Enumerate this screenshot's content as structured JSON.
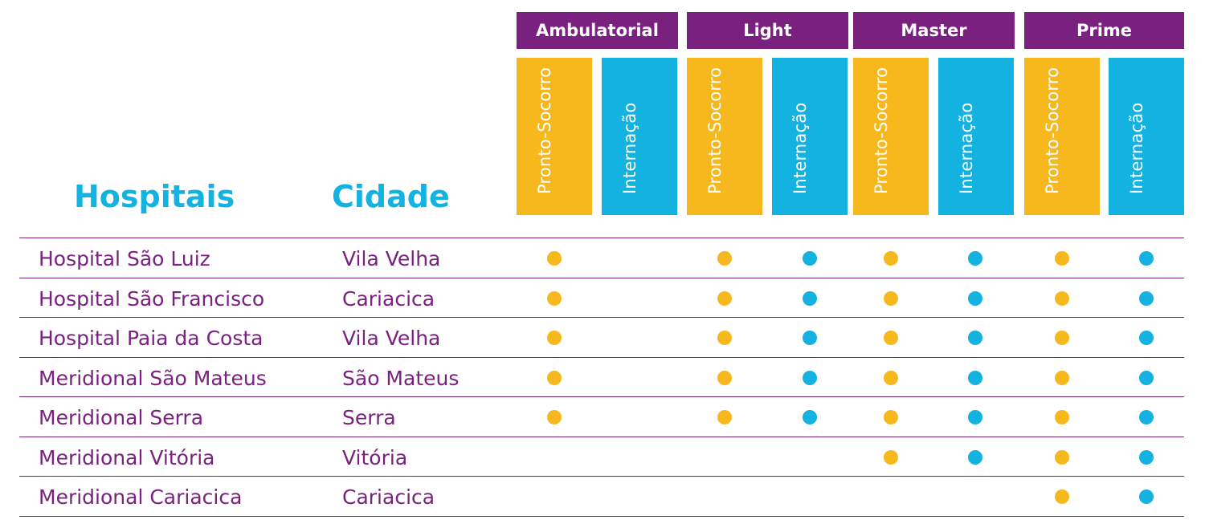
{
  "colors": {
    "purple": "#7a2180",
    "yellow": "#f7b81d",
    "blue": "#13b2e0"
  },
  "headers": {
    "hospitais": "Hospitais",
    "cidade": "Cidade"
  },
  "plans": [
    {
      "name": "Ambulatorial",
      "sub": [
        "Pronto-Socorro",
        "Internação"
      ]
    },
    {
      "name": "Light",
      "sub": [
        "Pronto-Socorro",
        "Internação"
      ]
    },
    {
      "name": "Master",
      "sub": [
        "Pronto-Socorro",
        "Internação"
      ]
    },
    {
      "name": "Prime",
      "sub": [
        "Pronto-Socorro",
        "Internação"
      ]
    }
  ],
  "rows": [
    {
      "hospital": "Hospital São Luiz",
      "cidade": "Vila Velha",
      "coverage": [
        true,
        false,
        true,
        true,
        true,
        true,
        true,
        true
      ]
    },
    {
      "hospital": "Hospital São Francisco",
      "cidade": "Cariacica",
      "coverage": [
        true,
        false,
        true,
        true,
        true,
        true,
        true,
        true
      ]
    },
    {
      "hospital": "Hospital Paia da Costa",
      "cidade": "Vila Velha",
      "coverage": [
        true,
        false,
        true,
        true,
        true,
        true,
        true,
        true
      ]
    },
    {
      "hospital": "Meridional São Mateus",
      "cidade": "São Mateus",
      "coverage": [
        true,
        false,
        true,
        true,
        true,
        true,
        true,
        true
      ]
    },
    {
      "hospital": "Meridional Serra",
      "cidade": "Serra",
      "coverage": [
        true,
        false,
        true,
        true,
        true,
        true,
        true,
        true
      ]
    },
    {
      "hospital": "Meridional Vitória",
      "cidade": "Vitória",
      "coverage": [
        false,
        false,
        false,
        false,
        true,
        true,
        true,
        true
      ]
    },
    {
      "hospital": "Meridional Cariacica",
      "cidade": "Cariacica",
      "coverage": [
        false,
        false,
        false,
        false,
        false,
        false,
        true,
        true
      ]
    }
  ]
}
